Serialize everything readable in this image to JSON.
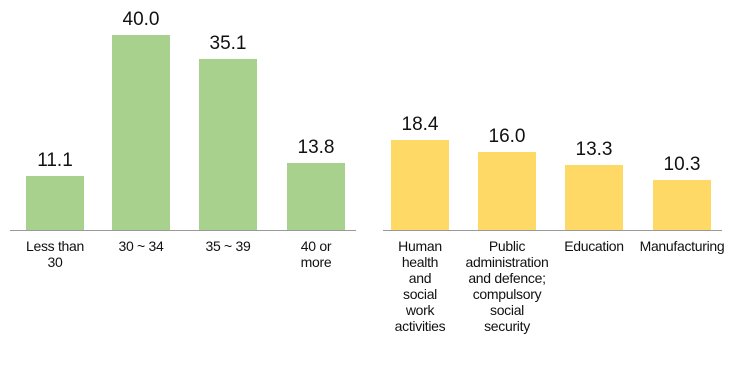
{
  "chart_data": [
    {
      "type": "bar",
      "categories": [
        "Less than 30",
        "30 ~ 34",
        "35 ~ 39",
        "40 or more"
      ],
      "values": [
        11.1,
        40.0,
        35.1,
        13.8
      ],
      "value_labels": [
        "11.1",
        "40.0",
        "35.1",
        "13.8"
      ],
      "color": "#a9d18e"
    },
    {
      "type": "bar",
      "categories": [
        "Human health and social work activities",
        "Public administration and defence; compulsory social security",
        "Education",
        "Manufacturing"
      ],
      "values": [
        18.4,
        16.0,
        13.3,
        10.3
      ],
      "value_labels": [
        "18.4",
        "16.0",
        "13.3",
        "10.3"
      ],
      "color": "#ffd966"
    }
  ]
}
